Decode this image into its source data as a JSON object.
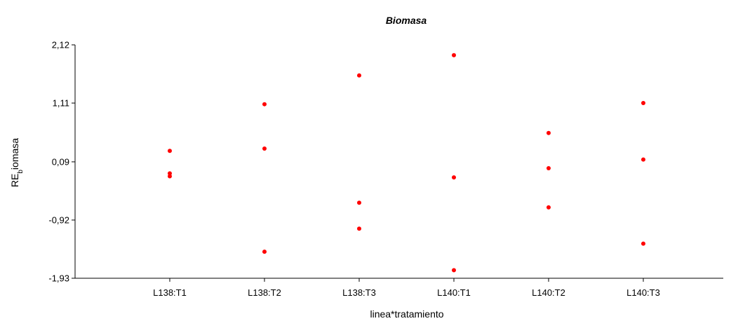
{
  "chart_data": {
    "type": "scatter",
    "title": "Biomasa",
    "xlabel": "linea*tratamiento",
    "ylabel": {
      "main": "RE",
      "sub": "b",
      "rest": "iomasa"
    },
    "categories": [
      "L138:T1",
      "L138:T2",
      "L138:T3",
      "L140:T1",
      "L140:T2",
      "L140:T3"
    ],
    "y_ticks": [
      -1.93,
      -0.92,
      0.09,
      1.11,
      2.12
    ],
    "y_tick_labels": [
      "-1,93",
      "-0,92",
      "0,09",
      "1,11",
      "2,12"
    ],
    "ylim": [
      -1.93,
      2.12
    ],
    "grid": false,
    "marker_color": "#ff0000",
    "series": [
      {
        "points": [
          {
            "x": "L138:T1",
            "y": 0.28
          },
          {
            "x": "L138:T1",
            "y": -0.11
          },
          {
            "x": "L138:T1",
            "y": -0.16
          },
          {
            "x": "L138:T2",
            "y": 1.09
          },
          {
            "x": "L138:T2",
            "y": 0.32
          },
          {
            "x": "L138:T2",
            "y": -1.47
          },
          {
            "x": "L138:T3",
            "y": 1.59
          },
          {
            "x": "L138:T3",
            "y": -0.62
          },
          {
            "x": "L138:T3",
            "y": -1.07
          },
          {
            "x": "L140:T1",
            "y": 1.94
          },
          {
            "x": "L140:T1",
            "y": -0.18
          },
          {
            "x": "L140:T1",
            "y": -1.79
          },
          {
            "x": "L140:T2",
            "y": 0.59
          },
          {
            "x": "L140:T2",
            "y": -0.02
          },
          {
            "x": "L140:T2",
            "y": -0.7
          },
          {
            "x": "L140:T3",
            "y": 1.11
          },
          {
            "x": "L140:T3",
            "y": 0.13
          },
          {
            "x": "L140:T3",
            "y": -1.33
          }
        ]
      }
    ]
  }
}
